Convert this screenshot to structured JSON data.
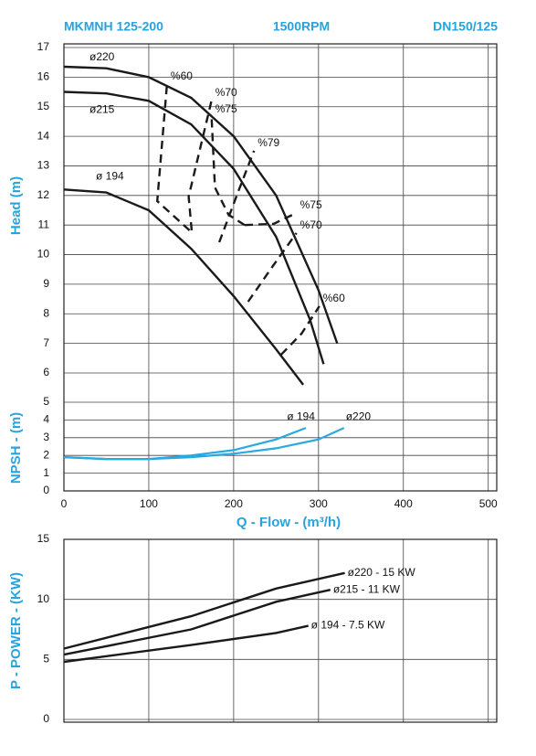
{
  "header": {
    "title": "MKMNH 125-200",
    "speed": "1500RPM",
    "size": "DN150/125"
  },
  "chart_data": [
    {
      "type": "line",
      "ylabel": "Head (m)",
      "xlim": [
        0,
        510
      ],
      "ylim": [
        6,
        17
      ],
      "yticks": [
        6,
        7,
        8,
        9,
        10,
        11,
        12,
        13,
        14,
        15,
        16,
        17
      ],
      "grid": true,
      "series": [
        {
          "name": "ø220",
          "color": "#1a1a1a",
          "dashed": false,
          "x": [
            0,
            50,
            100,
            150,
            200,
            250,
            300,
            322
          ],
          "values": [
            16.35,
            16.3,
            16.0,
            15.3,
            14.0,
            12.0,
            8.8,
            7.0
          ]
        },
        {
          "name": "ø215",
          "color": "#1a1a1a",
          "dashed": false,
          "x": [
            0,
            50,
            100,
            150,
            200,
            250,
            290,
            306
          ],
          "values": [
            15.5,
            15.45,
            15.2,
            14.4,
            12.9,
            10.6,
            7.8,
            6.3
          ]
        },
        {
          "name": "ø 194",
          "color": "#1a1a1a",
          "dashed": false,
          "x": [
            0,
            50,
            100,
            150,
            200,
            250,
            282
          ],
          "values": [
            12.2,
            12.1,
            11.5,
            10.2,
            8.6,
            6.8,
            5.6
          ]
        },
        {
          "name": "%60",
          "color": "#1a1a1a",
          "dashed": true,
          "x": [
            148,
            110,
            121.5
          ],
          "values": [
            10.82,
            11.81,
            15.77
          ]
        },
        {
          "name": "%70",
          "color": "#1a1a1a",
          "dashed": true,
          "x": [
            150.5,
            147,
            174
          ],
          "values": [
            10.82,
            11.96,
            15.21
          ]
        },
        {
          "name": "%75",
          "color": "#1a1a1a",
          "dashed": true,
          "x": [
            213,
            194,
            178,
            174
          ],
          "values": [
            11.0,
            11.35,
            12.27,
            14.65
          ]
        },
        {
          "name": "%79",
          "color": "#1a1a1a",
          "dashed": true,
          "x": [
            183,
            206,
            224
          ],
          "values": [
            10.42,
            12.18,
            13.51
          ]
        },
        {
          "name": "%75",
          "color": "#1a1a1a",
          "dashed": true,
          "x": [
            213,
            247,
            274
          ],
          "values": [
            11.0,
            11.04,
            11.41
          ]
        },
        {
          "name": "%70",
          "color": "#1a1a1a",
          "dashed": true,
          "x": [
            217,
            247,
            274
          ],
          "values": [
            8.41,
            9.65,
            10.73
          ]
        },
        {
          "name": "%60",
          "color": "#1a1a1a",
          "dashed": true,
          "x": [
            256,
            280,
            301
          ],
          "values": [
            6.62,
            7.33,
            8.26
          ]
        }
      ]
    },
    {
      "type": "line",
      "ylabel": "NPSH - (m)",
      "xlabel": "Q - Flow - (m³/h)",
      "xlim": [
        0,
        510
      ],
      "ylim": [
        0,
        5
      ],
      "xticks": [
        0,
        100,
        200,
        300,
        400,
        500
      ],
      "yticks": [
        0,
        1,
        2,
        3,
        4,
        5
      ],
      "grid": true,
      "series": [
        {
          "name": "ø 194",
          "color": "#29a9e0",
          "x": [
            0,
            50,
            100,
            150,
            200,
            250,
            285
          ],
          "values": [
            1.9,
            1.8,
            1.8,
            2.0,
            2.3,
            2.9,
            3.55
          ]
        },
        {
          "name": "ø220",
          "color": "#29a9e0",
          "x": [
            0,
            50,
            100,
            150,
            200,
            250,
            300,
            330
          ],
          "values": [
            1.9,
            1.8,
            1.8,
            1.9,
            2.1,
            2.4,
            2.9,
            3.55
          ]
        }
      ]
    },
    {
      "type": "line",
      "ylabel": "P - POWER - (KW)",
      "xlim": [
        0,
        510
      ],
      "ylim": [
        0,
        15
      ],
      "yticks": [
        0,
        5,
        10,
        15
      ],
      "grid": true,
      "series": [
        {
          "name": "ø220 - 15 KW",
          "color": "#1a1a1a",
          "x": [
            0,
            150,
            250,
            331
          ],
          "values": [
            5.9,
            8.6,
            10.9,
            12.2
          ]
        },
        {
          "name": "ø215 - 11 KW",
          "color": "#1a1a1a",
          "x": [
            0,
            150,
            250,
            314
          ],
          "values": [
            5.4,
            7.5,
            9.8,
            10.8
          ]
        },
        {
          "name": "ø 194 - 7.5 KW",
          "color": "#1a1a1a",
          "x": [
            0,
            150,
            250,
            288
          ],
          "values": [
            4.8,
            6.2,
            7.2,
            7.8
          ]
        }
      ]
    }
  ]
}
